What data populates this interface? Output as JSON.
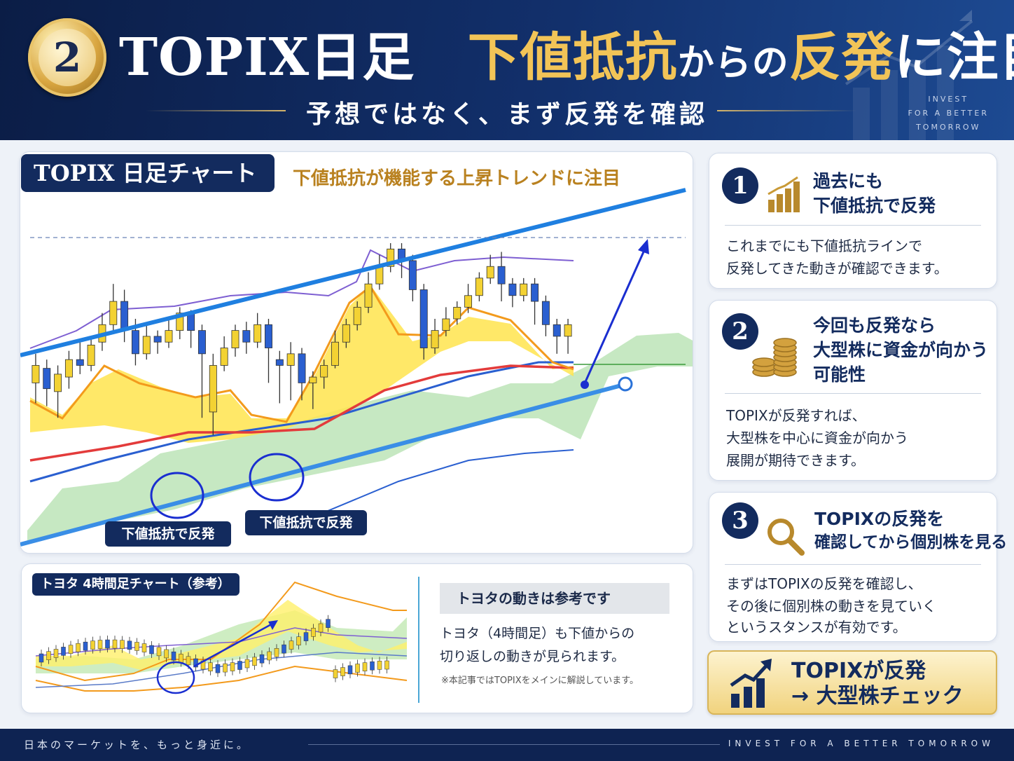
{
  "header": {
    "badge_number": "2",
    "title_part1": "TOPIX日足",
    "title_part2": "下値抵抗",
    "title_part3": "からの",
    "title_part4": "反発",
    "title_part5": "に注目",
    "subtitle": "予想ではなく、まず反発を確認",
    "invest_line1": "INVEST",
    "invest_line2": "FOR A BETTER",
    "invest_line3": "TOMORROW"
  },
  "main_chart": {
    "tag": "TOPIX 日足チャート",
    "subtitle": "下値抵抗が機能する上昇トレンドに注目",
    "note1": "下値抵抗で反発",
    "note2": "下値抵抗で反発"
  },
  "chart_data": {
    "type": "candlestick",
    "title": "TOPIX 日足チャート",
    "candles": [
      {
        "o": 0.52,
        "c": 0.58,
        "h": 0.62,
        "l": 0.45
      },
      {
        "o": 0.57,
        "c": 0.5,
        "h": 0.6,
        "l": 0.44
      },
      {
        "o": 0.49,
        "c": 0.55,
        "h": 0.58,
        "l": 0.4
      },
      {
        "o": 0.54,
        "c": 0.6,
        "h": 0.63,
        "l": 0.5
      },
      {
        "o": 0.6,
        "c": 0.58,
        "h": 0.66,
        "l": 0.55
      },
      {
        "o": 0.58,
        "c": 0.65,
        "h": 0.68,
        "l": 0.56
      },
      {
        "o": 0.66,
        "c": 0.72,
        "h": 0.76,
        "l": 0.63
      },
      {
        "o": 0.72,
        "c": 0.8,
        "h": 0.86,
        "l": 0.7
      },
      {
        "o": 0.8,
        "c": 0.7,
        "h": 0.84,
        "l": 0.66
      },
      {
        "o": 0.7,
        "c": 0.62,
        "h": 0.74,
        "l": 0.58
      },
      {
        "o": 0.62,
        "c": 0.68,
        "h": 0.72,
        "l": 0.6
      },
      {
        "o": 0.68,
        "c": 0.66,
        "h": 0.7,
        "l": 0.62
      },
      {
        "o": 0.66,
        "c": 0.7,
        "h": 0.74,
        "l": 0.64
      },
      {
        "o": 0.7,
        "c": 0.76,
        "h": 0.78,
        "l": 0.67
      },
      {
        "o": 0.76,
        "c": 0.7,
        "h": 0.77,
        "l": 0.64
      },
      {
        "o": 0.7,
        "c": 0.62,
        "h": 0.72,
        "l": 0.4
      },
      {
        "o": 0.42,
        "c": 0.58,
        "h": 0.62,
        "l": 0.34
      },
      {
        "o": 0.58,
        "c": 0.64,
        "h": 0.68,
        "l": 0.56
      },
      {
        "o": 0.64,
        "c": 0.7,
        "h": 0.72,
        "l": 0.61
      },
      {
        "o": 0.7,
        "c": 0.66,
        "h": 0.73,
        "l": 0.62
      },
      {
        "o": 0.66,
        "c": 0.72,
        "h": 0.76,
        "l": 0.64
      },
      {
        "o": 0.72,
        "c": 0.64,
        "h": 0.74,
        "l": 0.52
      },
      {
        "o": 0.6,
        "c": 0.58,
        "h": 0.63,
        "l": 0.45
      },
      {
        "o": 0.58,
        "c": 0.62,
        "h": 0.66,
        "l": 0.46
      },
      {
        "o": 0.62,
        "c": 0.52,
        "h": 0.64,
        "l": 0.46
      },
      {
        "o": 0.52,
        "c": 0.54,
        "h": 0.56,
        "l": 0.43
      },
      {
        "o": 0.54,
        "c": 0.58,
        "h": 0.6,
        "l": 0.5
      },
      {
        "o": 0.58,
        "c": 0.66,
        "h": 0.7,
        "l": 0.57
      },
      {
        "o": 0.66,
        "c": 0.72,
        "h": 0.74,
        "l": 0.64
      },
      {
        "o": 0.72,
        "c": 0.78,
        "h": 0.8,
        "l": 0.7
      },
      {
        "o": 0.78,
        "c": 0.86,
        "h": 0.9,
        "l": 0.76
      },
      {
        "o": 0.86,
        "c": 0.92,
        "h": 0.96,
        "l": 0.84
      },
      {
        "o": 0.92,
        "c": 0.98,
        "h": 1.0,
        "l": 0.9
      },
      {
        "o": 0.98,
        "c": 0.94,
        "h": 1.0,
        "l": 0.88
      },
      {
        "o": 0.94,
        "c": 0.84,
        "h": 0.96,
        "l": 0.8
      },
      {
        "o": 0.84,
        "c": 0.64,
        "h": 0.86,
        "l": 0.6
      },
      {
        "o": 0.64,
        "c": 0.7,
        "h": 0.74,
        "l": 0.62
      },
      {
        "o": 0.7,
        "c": 0.74,
        "h": 0.78,
        "l": 0.68
      },
      {
        "o": 0.74,
        "c": 0.78,
        "h": 0.8,
        "l": 0.72
      },
      {
        "o": 0.78,
        "c": 0.82,
        "h": 0.86,
        "l": 0.76
      },
      {
        "o": 0.82,
        "c": 0.88,
        "h": 0.9,
        "l": 0.8
      },
      {
        "o": 0.88,
        "c": 0.92,
        "h": 0.96,
        "l": 0.86
      },
      {
        "o": 0.92,
        "c": 0.86,
        "h": 0.97,
        "l": 0.8
      },
      {
        "o": 0.86,
        "c": 0.82,
        "h": 0.88,
        "l": 0.78
      },
      {
        "o": 0.82,
        "c": 0.86,
        "h": 0.88,
        "l": 0.8
      },
      {
        "o": 0.86,
        "c": 0.8,
        "h": 0.88,
        "l": 0.72
      },
      {
        "o": 0.8,
        "c": 0.72,
        "h": 0.82,
        "l": 0.68
      },
      {
        "o": 0.72,
        "c": 0.68,
        "h": 0.74,
        "l": 0.62
      },
      {
        "o": 0.68,
        "c": 0.72,
        "h": 0.74,
        "l": 0.62
      }
    ]
  },
  "side_cards": [
    {
      "num": "1",
      "title1": "過去にも",
      "title2": "下値抵抗で反発",
      "title3": "",
      "body1": "これまでにも下値抵抗ラインで",
      "body2": "反発してきた動きが確認できます。",
      "body3": ""
    },
    {
      "num": "2",
      "title1": "今回も反発なら",
      "title2": "大型株に資金が向かう",
      "title3": "可能性",
      "body1": "TOPIXが反発すれば、",
      "body2": "大型株を中心に資金が向かう",
      "body3": "展開が期待できます。"
    },
    {
      "num": "3",
      "title1": "TOPIXの反発を",
      "title2": "確認してから個別株を見る",
      "title3": "",
      "body1": "まずはTOPIXの反発を確認し、",
      "body2": "その後に個別株の動きを見ていく",
      "body3": "というスタンスが有効です。"
    }
  ],
  "cta": {
    "line1": "TOPIXが反発",
    "line2": "→ 大型株チェック"
  },
  "toyota": {
    "tag": "トヨタ 4時間足チャート（参考）",
    "head": "トヨタの動きは参考です",
    "body1": "トヨタ（4時間足）も下値からの",
    "body2": "切り返しの動きが見られます。",
    "small": "※本記事ではTOPIXをメインに解説しています。"
  },
  "footer": {
    "left": "日本のマーケットを、もっと身近に。",
    "right": "INVEST FOR A BETTER TOMORROW"
  },
  "colors": {
    "navy": "#132b5e",
    "gold": "#f2c457",
    "up": "#f3d233",
    "down": "#2a5fd0",
    "channel": "#1f7fe0"
  }
}
